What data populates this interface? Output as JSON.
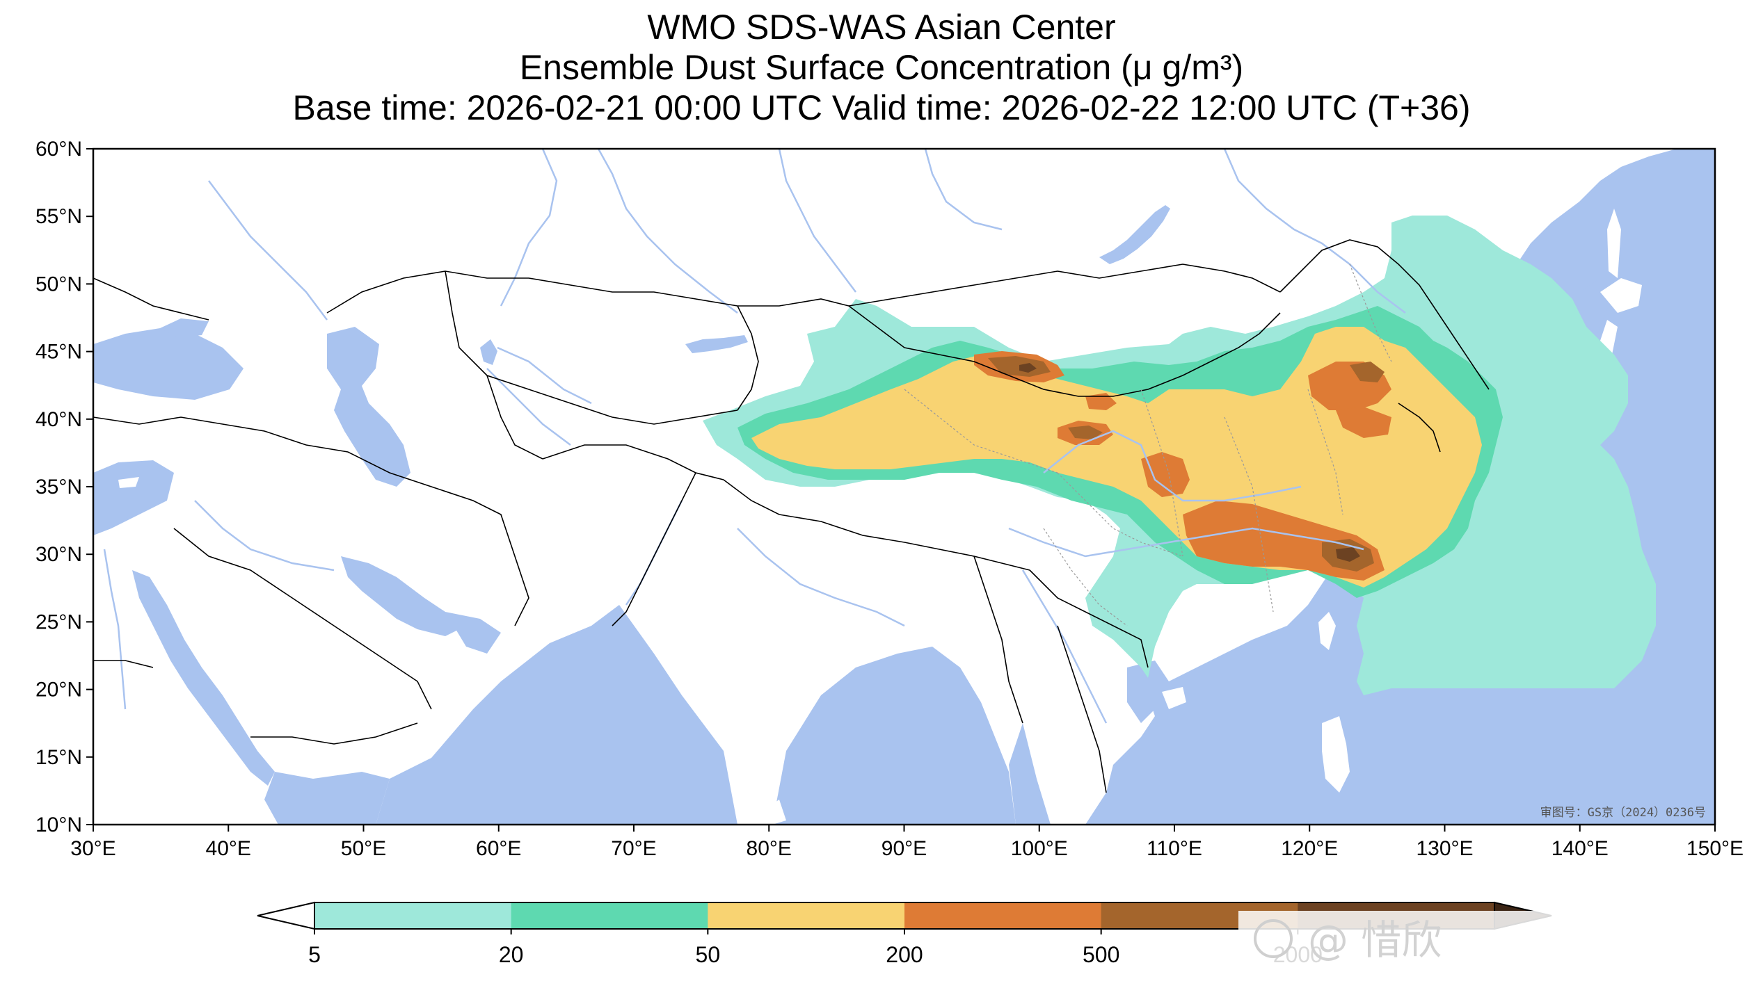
{
  "title": {
    "line1": "WMO SDS-WAS Asian Center",
    "line2": "Ensemble Dust Surface Concentration (μ g/m³)",
    "line3": "Base time: 2026-02-21 00:00 UTC Valid time: 2026-02-22 12:00 UTC (T+36)"
  },
  "map": {
    "lon_range": [
      30,
      150
    ],
    "lat_range": [
      10,
      60
    ],
    "lon_ticks": [
      "30°E",
      "40°E",
      "50°E",
      "60°E",
      "70°E",
      "80°E",
      "90°E",
      "100°E",
      "110°E",
      "120°E",
      "130°E",
      "140°E",
      "150°E"
    ],
    "lat_ticks": [
      "60°N",
      "55°N",
      "50°N",
      "45°N",
      "40°N",
      "35°N",
      "30°N",
      "25°N",
      "20°N",
      "15°N",
      "10°N"
    ],
    "approval_number": "审图号：GS京（2024）0236号",
    "colors": {
      "ocean": "#a9c3ef",
      "land": "#ffffff",
      "rivers": "#a9c3ef",
      "borders": "#000000"
    }
  },
  "colorbar": {
    "labels": [
      "5",
      "20",
      "50",
      "200",
      "500",
      "2000"
    ],
    "colors": [
      "#9ee8da",
      "#5ed9b0",
      "#f8d372",
      "#de7b35",
      "#a4652c",
      "#6c4222",
      "#3b2414"
    ],
    "extend": "both"
  },
  "watermark": "@ 惜欣"
}
